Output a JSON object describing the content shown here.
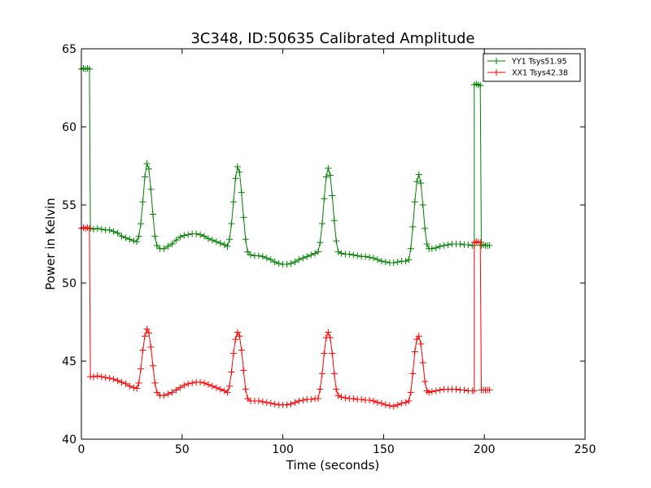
{
  "chart_data": {
    "type": "line",
    "title": "3C348, ID:50635 Calibrated Amplitude",
    "xlabel": "Time (seconds)",
    "ylabel": "Power in Kelvin",
    "xlim": [
      0,
      250
    ],
    "ylim": [
      40,
      65
    ],
    "xticks": [
      0,
      50,
      100,
      150,
      200,
      250
    ],
    "yticks": [
      40,
      45,
      50,
      55,
      60,
      65
    ],
    "grid": false,
    "legend_position": "top-right",
    "marker": "+",
    "series": [
      {
        "name": "YY1 Tsys51.95",
        "color": "#008000",
        "points": [
          [
            0,
            63.7
          ],
          [
            1,
            63.75
          ],
          [
            2,
            63.7
          ],
          [
            3,
            63.75
          ],
          [
            4,
            63.7
          ],
          [
            4.5,
            53.5
          ],
          [
            6,
            53.45
          ],
          [
            8,
            53.5
          ],
          [
            10,
            53.45
          ],
          [
            12,
            53.4
          ],
          [
            14,
            53.4
          ],
          [
            16,
            53.3
          ],
          [
            18,
            53.2
          ],
          [
            20,
            53.0
          ],
          [
            22,
            52.9
          ],
          [
            24,
            52.8
          ],
          [
            26,
            52.7
          ],
          [
            27.5,
            52.65
          ],
          [
            28.5,
            53.0
          ],
          [
            29.5,
            53.8
          ],
          [
            30.5,
            55.2
          ],
          [
            31.5,
            56.8
          ],
          [
            32.5,
            57.65
          ],
          [
            33.5,
            57.3
          ],
          [
            34.5,
            56.0
          ],
          [
            35.5,
            54.4
          ],
          [
            36.5,
            53.0
          ],
          [
            37.5,
            52.4
          ],
          [
            39,
            52.2
          ],
          [
            41,
            52.2
          ],
          [
            43,
            52.35
          ],
          [
            45,
            52.5
          ],
          [
            47,
            52.75
          ],
          [
            49,
            52.95
          ],
          [
            51,
            53.05
          ],
          [
            53,
            53.1
          ],
          [
            55,
            53.15
          ],
          [
            57,
            53.15
          ],
          [
            59,
            53.1
          ],
          [
            61,
            53.0
          ],
          [
            63,
            52.85
          ],
          [
            65,
            52.75
          ],
          [
            67,
            52.65
          ],
          [
            69,
            52.55
          ],
          [
            71,
            52.45
          ],
          [
            72.5,
            52.35
          ],
          [
            73.5,
            52.8
          ],
          [
            74.5,
            53.8
          ],
          [
            75.5,
            55.2
          ],
          [
            76.5,
            56.7
          ],
          [
            77.5,
            57.45
          ],
          [
            78.5,
            57.1
          ],
          [
            79.5,
            55.8
          ],
          [
            80.5,
            54.2
          ],
          [
            81.5,
            52.8
          ],
          [
            82.5,
            52.0
          ],
          [
            84,
            51.8
          ],
          [
            86,
            51.75
          ],
          [
            88,
            51.75
          ],
          [
            90,
            51.7
          ],
          [
            92,
            51.6
          ],
          [
            94,
            51.5
          ],
          [
            96,
            51.35
          ],
          [
            98,
            51.25
          ],
          [
            100,
            51.2
          ],
          [
            102,
            51.2
          ],
          [
            104,
            51.25
          ],
          [
            106,
            51.35
          ],
          [
            108,
            51.5
          ],
          [
            110,
            51.6
          ],
          [
            112,
            51.7
          ],
          [
            114,
            51.8
          ],
          [
            116,
            51.9
          ],
          [
            117.5,
            52.0
          ],
          [
            118.5,
            52.6
          ],
          [
            119.5,
            53.8
          ],
          [
            120.5,
            55.4
          ],
          [
            121.5,
            56.8
          ],
          [
            122.5,
            57.35
          ],
          [
            123.5,
            56.9
          ],
          [
            124.5,
            55.6
          ],
          [
            125.5,
            54.0
          ],
          [
            126.5,
            52.7
          ],
          [
            127.5,
            52.0
          ],
          [
            129,
            51.9
          ],
          [
            131,
            51.85
          ],
          [
            133,
            51.85
          ],
          [
            135,
            51.8
          ],
          [
            137,
            51.75
          ],
          [
            139,
            51.7
          ],
          [
            141,
            51.7
          ],
          [
            143,
            51.65
          ],
          [
            145,
            51.6
          ],
          [
            147,
            51.5
          ],
          [
            149,
            51.4
          ],
          [
            151,
            51.35
          ],
          [
            153,
            51.3
          ],
          [
            155,
            51.3
          ],
          [
            157,
            51.35
          ],
          [
            159,
            51.4
          ],
          [
            161,
            51.4
          ],
          [
            162.5,
            51.5
          ],
          [
            163.5,
            52.2
          ],
          [
            164.5,
            53.6
          ],
          [
            165.5,
            55.2
          ],
          [
            166.5,
            56.5
          ],
          [
            167.5,
            56.95
          ],
          [
            168.5,
            56.4
          ],
          [
            169.5,
            55.0
          ],
          [
            170.5,
            53.5
          ],
          [
            171.5,
            52.5
          ],
          [
            172.5,
            52.2
          ],
          [
            174,
            52.2
          ],
          [
            176,
            52.25
          ],
          [
            178,
            52.35
          ],
          [
            180,
            52.4
          ],
          [
            182,
            52.45
          ],
          [
            184,
            52.5
          ],
          [
            186,
            52.5
          ],
          [
            188,
            52.5
          ],
          [
            190,
            52.45
          ],
          [
            192,
            52.45
          ],
          [
            194,
            52.4
          ],
          [
            195,
            52.4
          ],
          [
            195,
            62.7
          ],
          [
            196,
            62.75
          ],
          [
            197,
            62.7
          ],
          [
            198,
            62.65
          ],
          [
            198.5,
            52.4
          ],
          [
            199.5,
            52.45
          ],
          [
            200.5,
            52.4
          ],
          [
            201.5,
            52.4
          ],
          [
            202.5,
            52.4
          ]
        ]
      },
      {
        "name": "XX1 Tsys42.38",
        "color": "#ff0000",
        "points": [
          [
            0,
            53.5
          ],
          [
            1,
            53.55
          ],
          [
            2,
            53.5
          ],
          [
            3,
            53.55
          ],
          [
            4,
            53.5
          ],
          [
            4.5,
            44.0
          ],
          [
            6,
            44.0
          ],
          [
            8,
            44.05
          ],
          [
            10,
            44.0
          ],
          [
            12,
            43.95
          ],
          [
            14,
            43.9
          ],
          [
            16,
            43.85
          ],
          [
            18,
            43.75
          ],
          [
            20,
            43.65
          ],
          [
            22,
            43.55
          ],
          [
            24,
            43.4
          ],
          [
            26,
            43.3
          ],
          [
            27.5,
            43.25
          ],
          [
            28.5,
            43.6
          ],
          [
            29.5,
            44.5
          ],
          [
            30.5,
            45.7
          ],
          [
            31.5,
            46.6
          ],
          [
            32.5,
            47.05
          ],
          [
            33.5,
            46.8
          ],
          [
            34.5,
            45.9
          ],
          [
            35.5,
            44.7
          ],
          [
            36.5,
            43.6
          ],
          [
            37.5,
            43.0
          ],
          [
            39,
            42.8
          ],
          [
            41,
            42.8
          ],
          [
            43,
            42.9
          ],
          [
            45,
            43.0
          ],
          [
            47,
            43.15
          ],
          [
            49,
            43.3
          ],
          [
            51,
            43.45
          ],
          [
            53,
            43.55
          ],
          [
            55,
            43.6
          ],
          [
            57,
            43.65
          ],
          [
            59,
            43.65
          ],
          [
            61,
            43.6
          ],
          [
            63,
            43.5
          ],
          [
            65,
            43.4
          ],
          [
            67,
            43.3
          ],
          [
            69,
            43.2
          ],
          [
            71,
            43.1
          ],
          [
            72.5,
            43.0
          ],
          [
            73.5,
            43.4
          ],
          [
            74.5,
            44.3
          ],
          [
            75.5,
            45.5
          ],
          [
            76.5,
            46.4
          ],
          [
            77.5,
            46.85
          ],
          [
            78.5,
            46.6
          ],
          [
            79.5,
            45.7
          ],
          [
            80.5,
            44.4
          ],
          [
            81.5,
            43.2
          ],
          [
            82.5,
            42.6
          ],
          [
            84,
            42.45
          ],
          [
            86,
            42.45
          ],
          [
            88,
            42.45
          ],
          [
            90,
            42.4
          ],
          [
            92,
            42.35
          ],
          [
            94,
            42.3
          ],
          [
            96,
            42.25
          ],
          [
            98,
            42.2
          ],
          [
            100,
            42.2
          ],
          [
            102,
            42.2
          ],
          [
            104,
            42.25
          ],
          [
            106,
            42.35
          ],
          [
            108,
            42.45
          ],
          [
            110,
            42.5
          ],
          [
            112,
            42.55
          ],
          [
            114,
            42.55
          ],
          [
            116,
            42.6
          ],
          [
            117.5,
            42.6
          ],
          [
            118.5,
            43.2
          ],
          [
            119.5,
            44.2
          ],
          [
            120.5,
            45.5
          ],
          [
            121.5,
            46.5
          ],
          [
            122.5,
            46.85
          ],
          [
            123.5,
            46.5
          ],
          [
            124.5,
            45.5
          ],
          [
            125.5,
            44.2
          ],
          [
            126.5,
            43.2
          ],
          [
            127.5,
            42.8
          ],
          [
            129,
            42.7
          ],
          [
            131,
            42.65
          ],
          [
            133,
            42.6
          ],
          [
            135,
            42.6
          ],
          [
            137,
            42.55
          ],
          [
            139,
            42.55
          ],
          [
            141,
            42.5
          ],
          [
            143,
            42.5
          ],
          [
            145,
            42.45
          ],
          [
            147,
            42.35
          ],
          [
            149,
            42.3
          ],
          [
            151,
            42.2
          ],
          [
            153,
            42.15
          ],
          [
            155,
            42.1
          ],
          [
            157,
            42.2
          ],
          [
            159,
            42.3
          ],
          [
            161,
            42.35
          ],
          [
            162.5,
            42.45
          ],
          [
            163.5,
            43.0
          ],
          [
            164.5,
            44.2
          ],
          [
            165.5,
            45.6
          ],
          [
            166.5,
            46.4
          ],
          [
            167.5,
            46.6
          ],
          [
            168.5,
            46.1
          ],
          [
            169.5,
            44.9
          ],
          [
            170.5,
            43.7
          ],
          [
            171.5,
            43.1
          ],
          [
            172.5,
            43.0
          ],
          [
            174,
            43.05
          ],
          [
            176,
            43.1
          ],
          [
            178,
            43.15
          ],
          [
            180,
            43.2
          ],
          [
            182,
            43.2
          ],
          [
            184,
            43.2
          ],
          [
            186,
            43.2
          ],
          [
            188,
            43.15
          ],
          [
            190,
            43.15
          ],
          [
            192,
            43.1
          ],
          [
            194,
            43.1
          ],
          [
            195,
            43.1
          ],
          [
            195,
            52.6
          ],
          [
            196,
            52.65
          ],
          [
            197,
            52.6
          ],
          [
            198,
            52.6
          ],
          [
            198.5,
            43.15
          ],
          [
            199.5,
            43.15
          ],
          [
            200.5,
            43.15
          ],
          [
            201.5,
            43.15
          ],
          [
            202.5,
            43.15
          ]
        ]
      }
    ]
  }
}
